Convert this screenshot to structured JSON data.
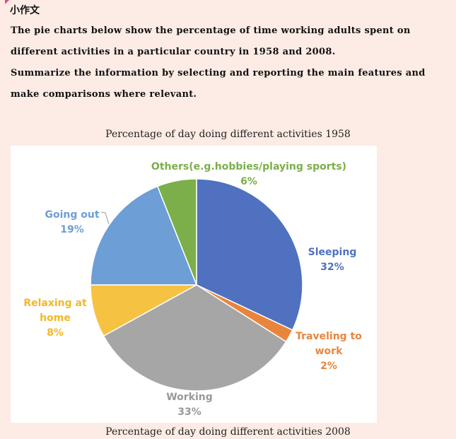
{
  "heading": "小作文",
  "prompt": {
    "paragraph1": "The pie charts below show the percentage of time working adults spent on different activities in a particular country in 1958 and 2008.",
    "paragraph2": "Summarize the information by selecting and reporting the main features and make comparisons where relevant."
  },
  "chart_titles": {
    "first": "Percentage of day doing different activities 1958",
    "second": "Percentage of day doing different activities 2008"
  },
  "chart_data": {
    "type": "pie",
    "title": "Percentage of day doing different activities 1958",
    "slices": [
      {
        "label": "Sleeping",
        "value": 32,
        "value_label": "32%",
        "color": "#4f71bf"
      },
      {
        "label": "Traveling to work",
        "value": 2,
        "value_label": "2%",
        "color": "#e8853c"
      },
      {
        "label": "Working",
        "value": 33,
        "value_label": "33%",
        "color": "#a6a6a6"
      },
      {
        "label": "Relaxing at home",
        "value": 8,
        "value_label": "8%",
        "color": "#f6c242"
      },
      {
        "label": "Going out",
        "value": 19,
        "value_label": "19%",
        "color": "#6d9ed6"
      },
      {
        "label": "Others(e.g.hobbies/playing sports)",
        "value": 6,
        "value_label": "6%",
        "color": "#7cae4a"
      }
    ]
  }
}
